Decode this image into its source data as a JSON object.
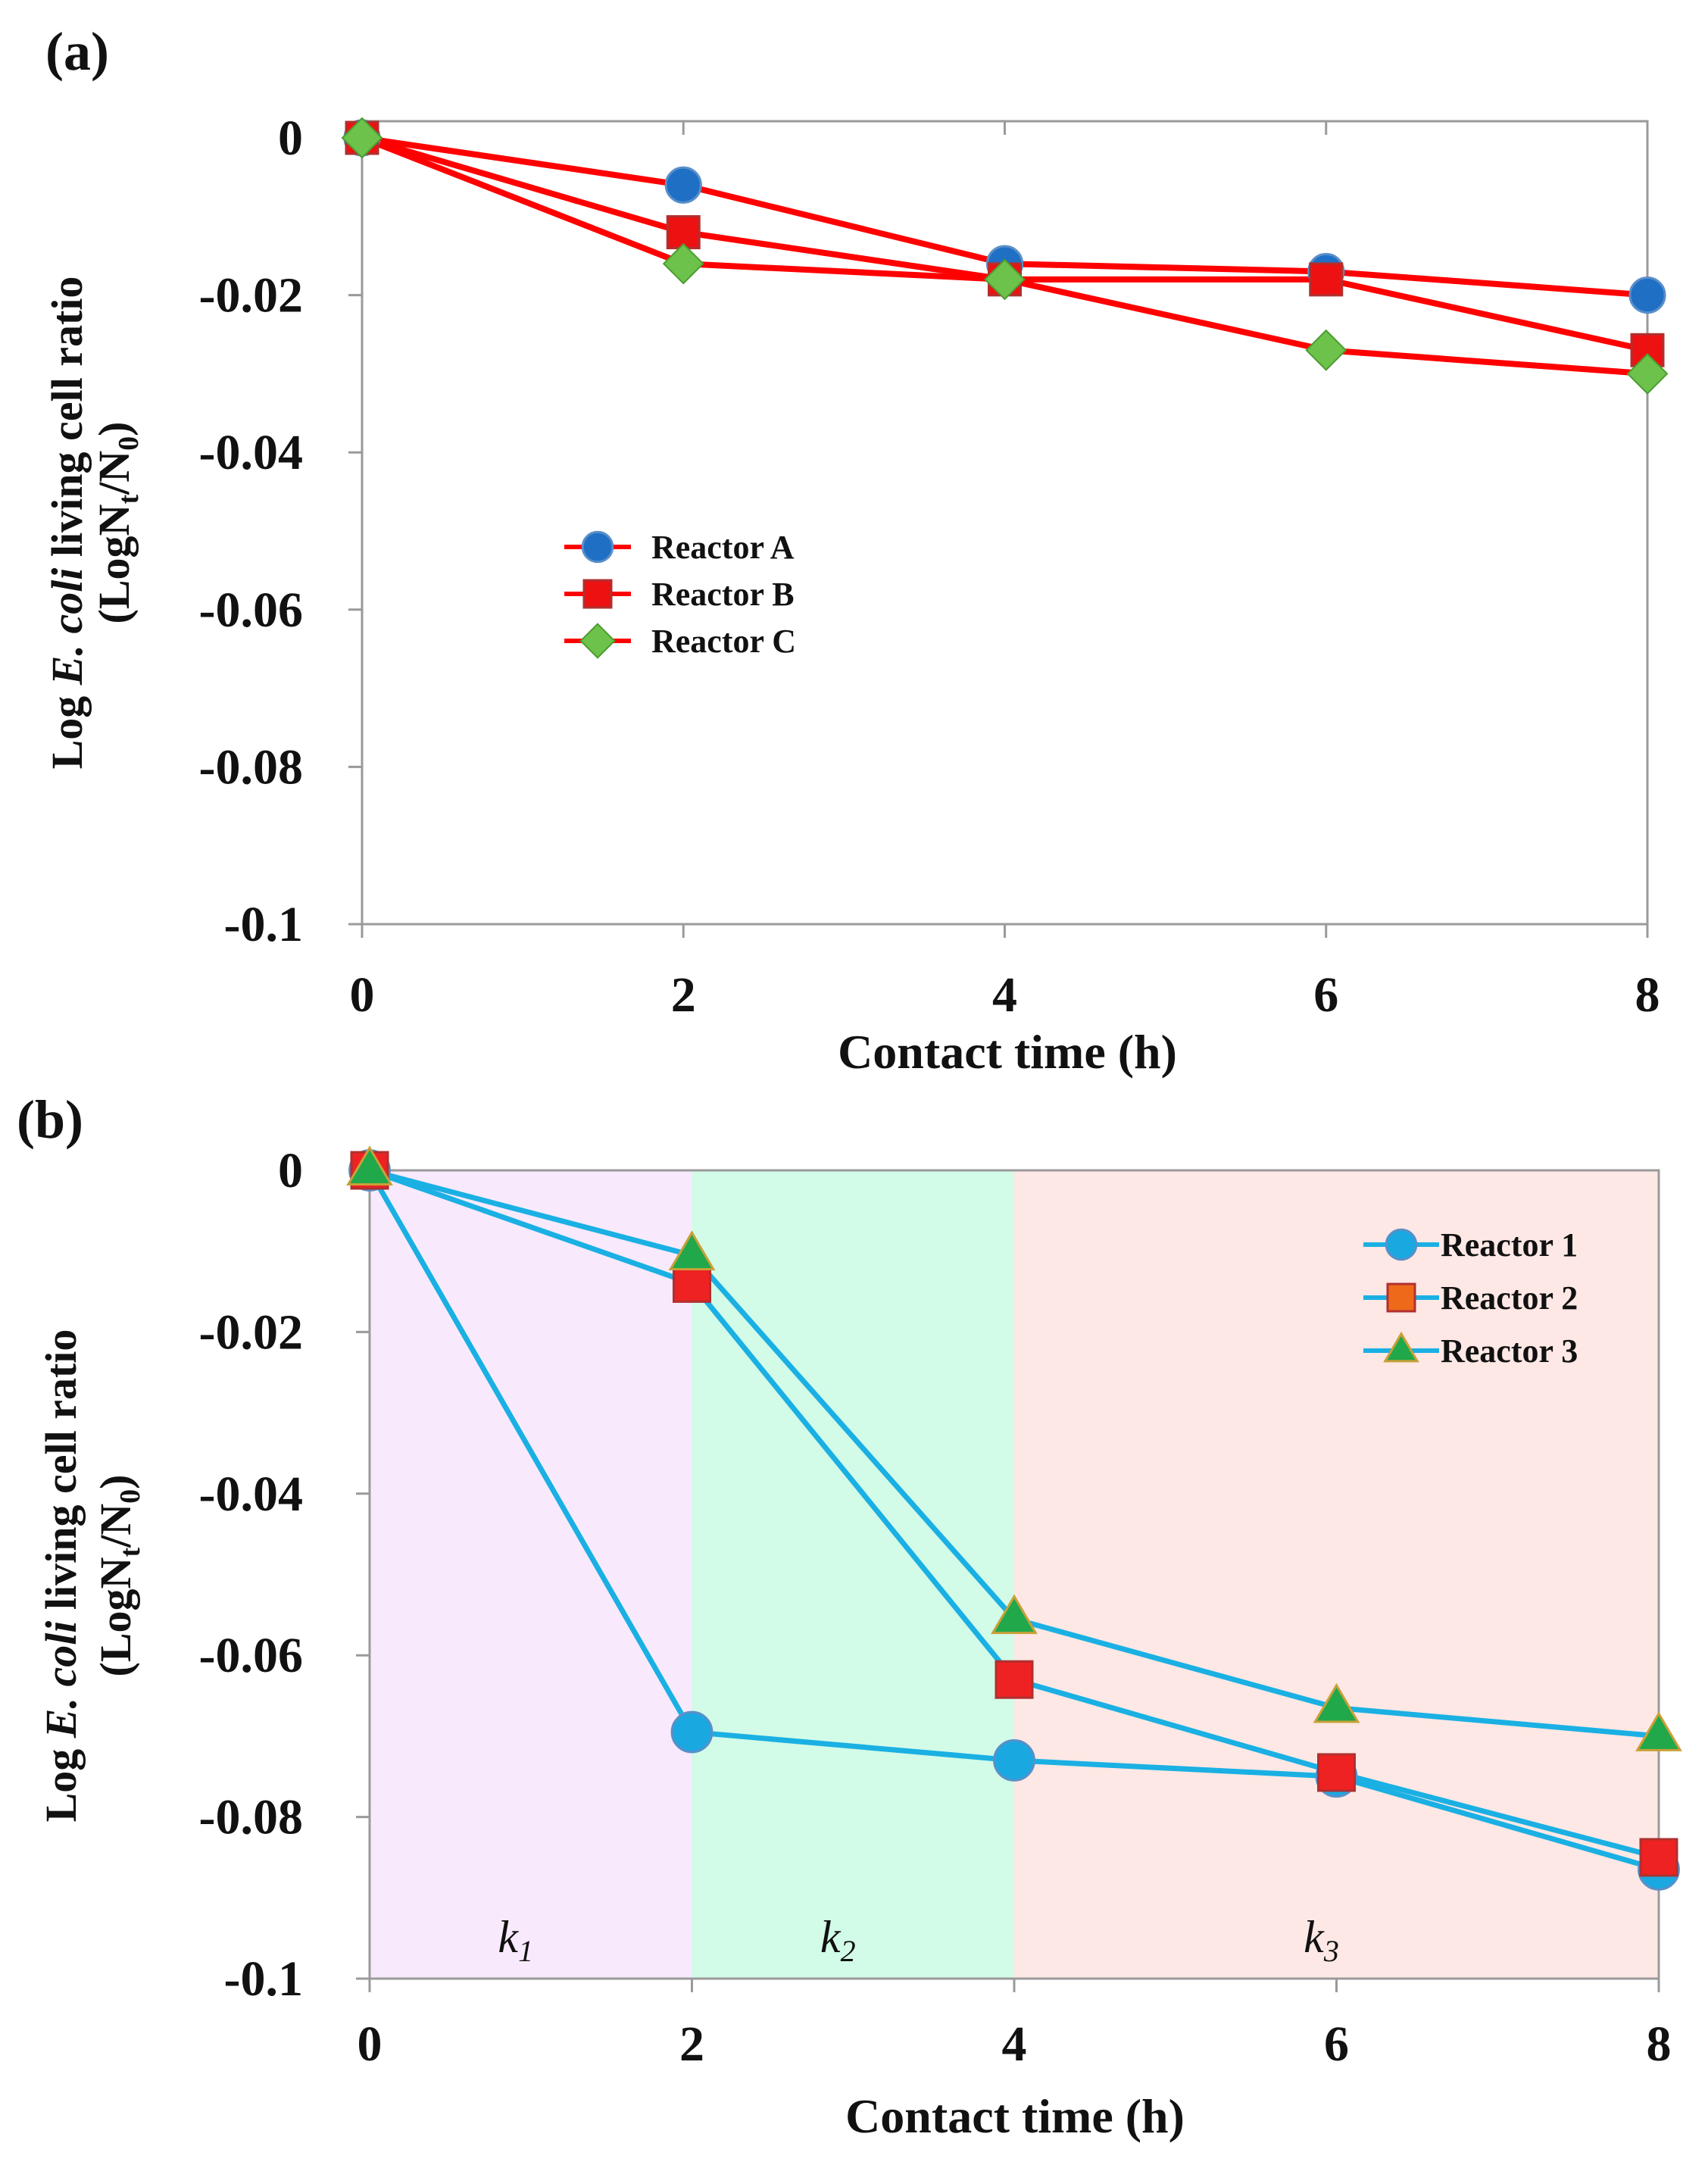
{
  "chart_data": [
    {
      "type": "line",
      "panel_label": "(a)",
      "xlabel": "Contact time (h)",
      "ylabel_line1_pre": "Log ",
      "ylabel_line1_italic": "E. coli",
      "ylabel_line1_post": " living cell ratio",
      "ylabel_line2_pre": "(LogN",
      "ylabel_line2_sub1": "t",
      "ylabel_line2_mid": "/N",
      "ylabel_line2_sub2": "0",
      "ylabel_line2_post": ")",
      "xlim": [
        0,
        8
      ],
      "ylim": [
        -0.1,
        0
      ],
      "xticks": [
        0,
        2,
        4,
        6,
        8
      ],
      "xtick_labels": [
        "0",
        "2",
        "4",
        "6",
        "8"
      ],
      "yticks": [
        0,
        -0.02,
        -0.04,
        -0.06,
        -0.08,
        -0.1
      ],
      "ytick_labels": [
        "0",
        "-0.02",
        "-0.04",
        "-0.06",
        "-0.08",
        "-0.1"
      ],
      "x": [
        0,
        2,
        4,
        6,
        8
      ],
      "legend_position": "center-left",
      "series": [
        {
          "name": "Reactor A",
          "marker": "circle",
          "line_color": "#ff0000",
          "marker_color": "#1f6fc5",
          "values": [
            0,
            -0.006,
            -0.016,
            -0.017,
            -0.02
          ]
        },
        {
          "name": "Reactor B",
          "marker": "square",
          "line_color": "#ff0000",
          "marker_color": "#ee1111",
          "values": [
            0,
            -0.012,
            -0.018,
            -0.018,
            -0.027
          ]
        },
        {
          "name": "Reactor C",
          "marker": "diamond",
          "line_color": "#ff0000",
          "marker_color": "#6cc24a",
          "values": [
            0,
            -0.016,
            -0.018,
            -0.027,
            -0.03
          ]
        }
      ]
    },
    {
      "type": "line",
      "panel_label": "(b)",
      "xlabel": "Contact time (h)",
      "ylabel_line1_pre": "Log ",
      "ylabel_line1_italic": "E. coli",
      "ylabel_line1_post": " living cell ratio",
      "ylabel_line2_pre": "(LogN",
      "ylabel_line2_sub1": "t",
      "ylabel_line2_mid": "/N",
      "ylabel_line2_sub2": "0",
      "ylabel_line2_post": ")",
      "xlim": [
        0,
        8
      ],
      "ylim": [
        -0.1,
        0
      ],
      "xticks": [
        0,
        2,
        4,
        6,
        8
      ],
      "xtick_labels": [
        "0",
        "2",
        "4",
        "6",
        "8"
      ],
      "yticks": [
        0,
        -0.02,
        -0.04,
        -0.06,
        -0.08,
        -0.1
      ],
      "ytick_labels": [
        "0",
        "-0.02",
        "-0.04",
        "-0.06",
        "-0.08",
        "-0.1"
      ],
      "x": [
        0,
        2,
        4,
        6,
        8
      ],
      "legend_position": "top-right",
      "regions": [
        {
          "x0": 0,
          "x1": 2,
          "label": "k",
          "sub": "1",
          "color": "#f8eafc"
        },
        {
          "x0": 2,
          "x1": 4,
          "label": "k",
          "sub": "2",
          "color": "#d2fbe8"
        },
        {
          "x0": 4,
          "x1": 8,
          "label": "k",
          "sub": "3",
          "color": "#fde8e5"
        }
      ],
      "series": [
        {
          "name": "Reactor 1",
          "marker": "circle",
          "line_color": "#1ab0e3",
          "marker_color": "#1aa8e0",
          "values": [
            0,
            -0.0695,
            -0.073,
            -0.075,
            -0.0865
          ]
        },
        {
          "name": "Reactor 2",
          "marker": "square",
          "line_color": "#1ab0e3",
          "marker_color": "#ee2222",
          "legend_marker_color": "#ee6a1a",
          "values": [
            0,
            -0.014,
            -0.063,
            -0.0745,
            -0.085
          ]
        },
        {
          "name": "Reactor 3",
          "marker": "triangle",
          "line_color": "#1ab0e3",
          "marker_color": "#20a84a",
          "values": [
            0,
            -0.0105,
            -0.0555,
            -0.0665,
            -0.07
          ]
        }
      ]
    }
  ]
}
